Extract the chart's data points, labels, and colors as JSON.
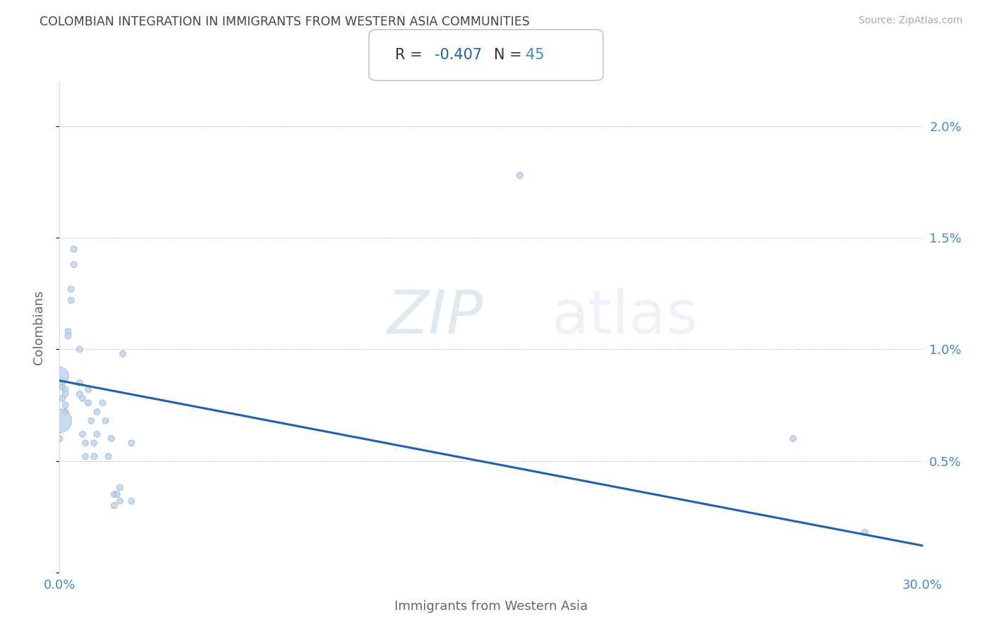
{
  "title": "COLOMBIAN INTEGRATION IN IMMIGRANTS FROM WESTERN ASIA COMMUNITIES",
  "source": "Source: ZipAtlas.com",
  "xlabel": "Immigrants from Western Asia",
  "ylabel": "Colombians",
  "R_val": "-0.407",
  "N_val": "45",
  "xlim": [
    0.0,
    0.3
  ],
  "ylim": [
    0.0,
    0.022
  ],
  "scatter_color": "#b8d0e8",
  "line_color": "#2060b0",
  "title_color": "#444444",
  "axis_label_color": "#4488cc",
  "grid_color": "#cccccc",
  "points": [
    [
      0.001,
      0.0086
    ],
    [
      0.001,
      0.0083
    ],
    [
      0.001,
      0.0078
    ],
    [
      0.002,
      0.0082
    ],
    [
      0.002,
      0.008
    ],
    [
      0.002,
      0.0075
    ],
    [
      0.002,
      0.0072
    ],
    [
      0.0,
      0.0088
    ],
    [
      0.0,
      0.0068
    ],
    [
      0.0,
      0.006
    ],
    [
      0.003,
      0.0108
    ],
    [
      0.003,
      0.0106
    ],
    [
      0.004,
      0.0122
    ],
    [
      0.004,
      0.0127
    ],
    [
      0.005,
      0.0138
    ],
    [
      0.005,
      0.0145
    ],
    [
      0.007,
      0.01
    ],
    [
      0.007,
      0.0085
    ],
    [
      0.007,
      0.008
    ],
    [
      0.008,
      0.0078
    ],
    [
      0.008,
      0.0062
    ],
    [
      0.009,
      0.0058
    ],
    [
      0.009,
      0.0052
    ],
    [
      0.01,
      0.0082
    ],
    [
      0.01,
      0.0076
    ],
    [
      0.011,
      0.0068
    ],
    [
      0.012,
      0.0058
    ],
    [
      0.012,
      0.0052
    ],
    [
      0.013,
      0.0072
    ],
    [
      0.013,
      0.0062
    ],
    [
      0.015,
      0.0076
    ],
    [
      0.016,
      0.0068
    ],
    [
      0.017,
      0.0052
    ],
    [
      0.018,
      0.006
    ],
    [
      0.019,
      0.0035
    ],
    [
      0.019,
      0.003
    ],
    [
      0.02,
      0.0035
    ],
    [
      0.021,
      0.0038
    ],
    [
      0.021,
      0.0032
    ],
    [
      0.022,
      0.0098
    ],
    [
      0.025,
      0.0058
    ],
    [
      0.025,
      0.0032
    ],
    [
      0.16,
      0.0178
    ],
    [
      0.255,
      0.006
    ],
    [
      0.28,
      0.0018
    ]
  ],
  "bubble_sizes": [
    40,
    40,
    40,
    40,
    40,
    40,
    40,
    350,
    600,
    40,
    40,
    40,
    40,
    40,
    40,
    40,
    40,
    40,
    40,
    40,
    40,
    40,
    40,
    40,
    40,
    40,
    40,
    40,
    40,
    40,
    40,
    40,
    40,
    40,
    40,
    40,
    40,
    40,
    40,
    40,
    40,
    40,
    40,
    40,
    40
  ],
  "line_x": [
    0.0,
    0.3
  ],
  "line_y": [
    0.0086,
    0.0012
  ]
}
